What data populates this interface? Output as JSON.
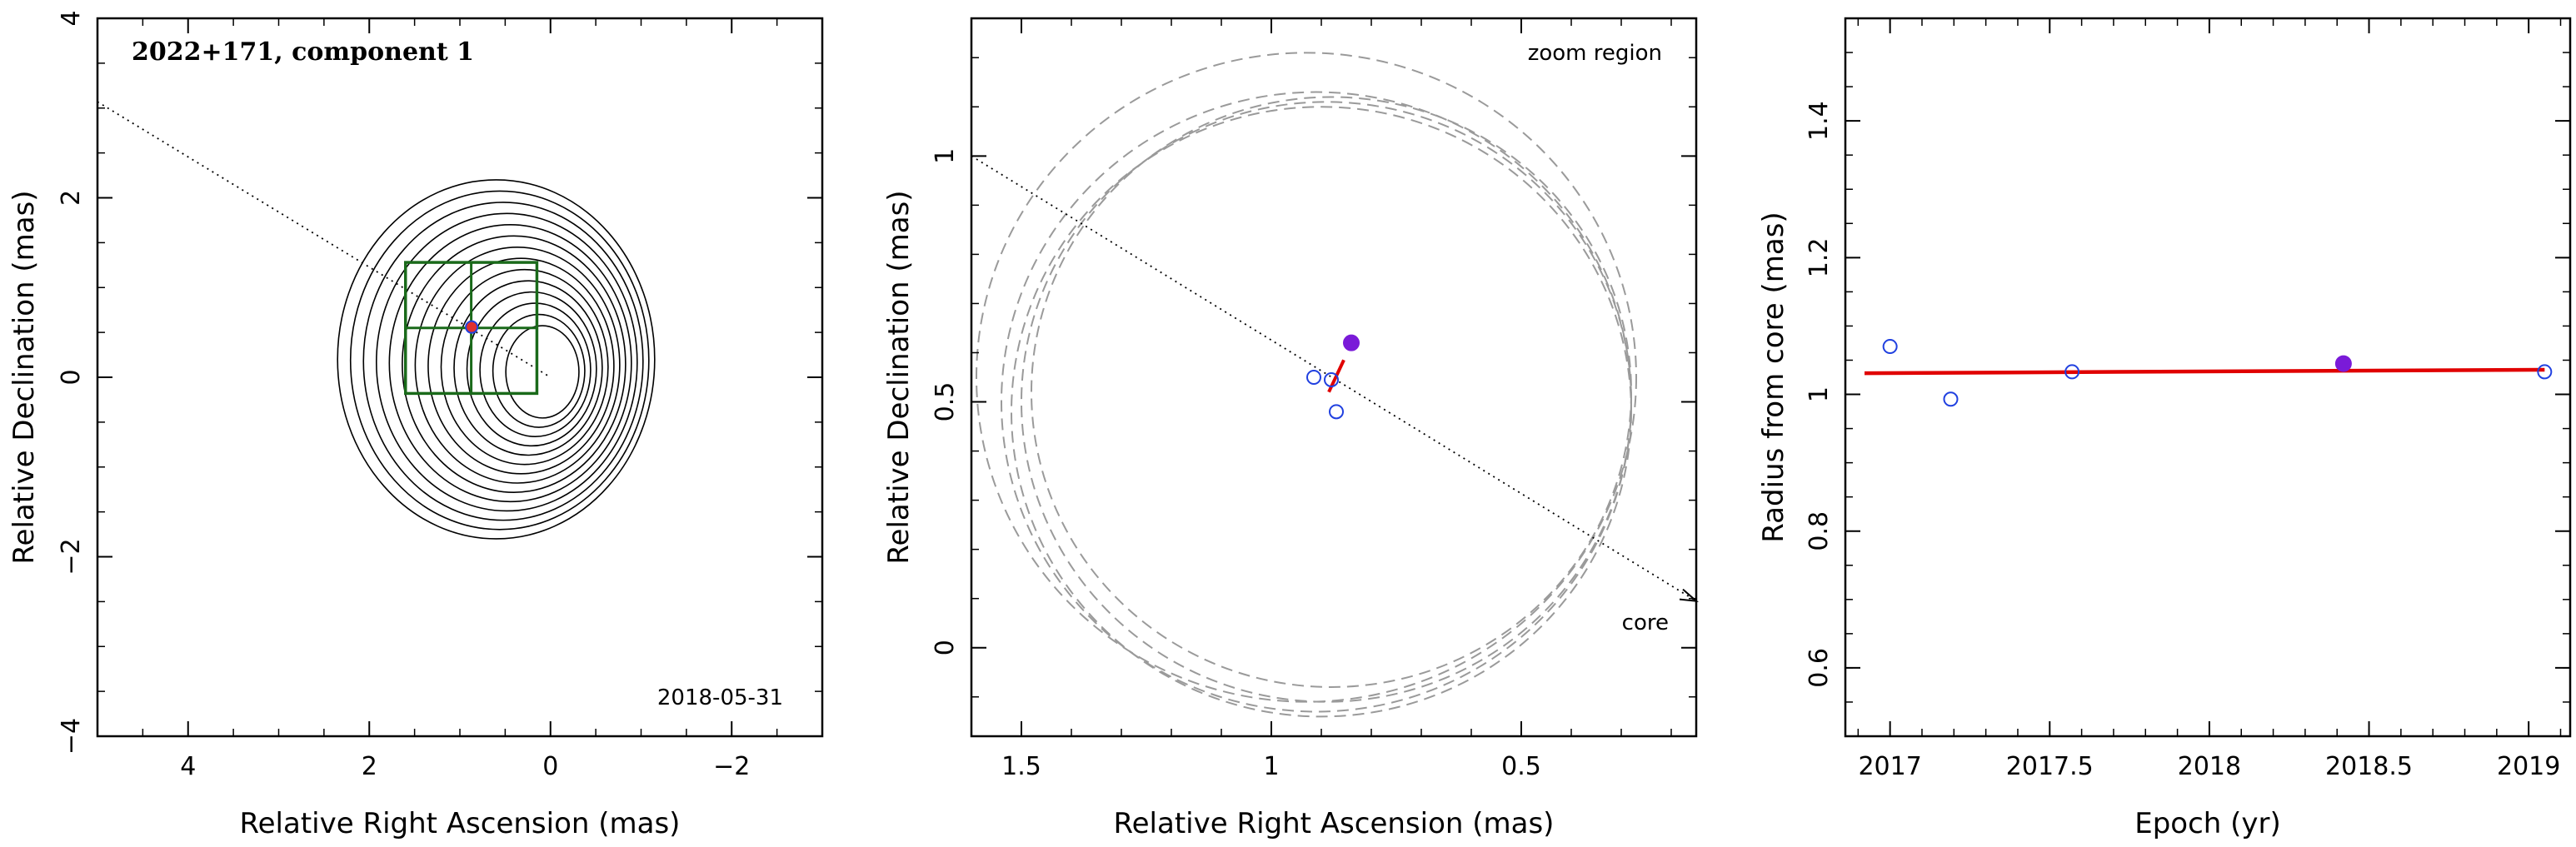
{
  "chart_data": [
    {
      "type": "contour",
      "title": "2022+171, component 1",
      "date": "2018-05-31",
      "xlabel": "Relative Right Ascension (mas)",
      "ylabel": "Relative Declination (mas)",
      "xlim": [
        5,
        -3
      ],
      "ylim": [
        -4,
        4
      ],
      "xticks": [
        4,
        2,
        0,
        -2
      ],
      "yticks": [
        -4,
        -2,
        0,
        2,
        4
      ],
      "xtick_labels": [
        "4",
        "2",
        "0",
        "−2"
      ],
      "ytick_labels": [
        "−4",
        "−2",
        "0",
        "2",
        "4"
      ],
      "component": {
        "x": 0.87,
        "y": 0.56
      },
      "zoom_box": {
        "x0": 1.6,
        "x1": 0.15,
        "y0": -0.18,
        "y1": 1.28
      },
      "line_from": [
        5.0,
        3.07
      ],
      "line_to": [
        0.0,
        0.0
      ]
    },
    {
      "type": "scatter",
      "xlabel": "Relative Right Ascension (mas)",
      "ylabel": "Relative Declination (mas)",
      "xlim": [
        1.6,
        0.15
      ],
      "ylim": [
        -0.18,
        1.28
      ],
      "xticks": [
        1.5,
        1,
        0.5
      ],
      "yticks": [
        0,
        0.5,
        1
      ],
      "xtick_labels": [
        "1.5",
        "1",
        "0.5"
      ],
      "ytick_labels": [
        "0",
        "0.5",
        "1"
      ],
      "annotations": {
        "zoom": "zoom region",
        "core": "core"
      },
      "series": [
        {
          "marker": "open-circle",
          "color": "#2040e0",
          "x": [
            0.915,
            0.88,
            0.87
          ],
          "y": [
            0.55,
            0.545,
            0.48
          ]
        },
        {
          "marker": "filled-circle",
          "color": "#7a1ad8",
          "x": [
            0.84
          ],
          "y": [
            0.62
          ]
        }
      ],
      "circles": [
        {
          "cx": 0.93,
          "cy": 0.55,
          "r": 0.66
        },
        {
          "cx": 0.91,
          "cy": 0.5,
          "r": 0.63
        },
        {
          "cx": 0.9,
          "cy": 0.48,
          "r": 0.62
        },
        {
          "cx": 0.89,
          "cy": 0.5,
          "r": 0.61
        },
        {
          "cx": 0.88,
          "cy": 0.52,
          "r": 0.6
        }
      ]
    },
    {
      "type": "scatter",
      "xlabel": "Epoch (yr)",
      "ylabel": "Radius from core (mas)",
      "xlim": [
        2016.86,
        2019.13
      ],
      "ylim": [
        0.5,
        1.55
      ],
      "xticks": [
        2017,
        2017.5,
        2018,
        2018.5,
        2019
      ],
      "yticks": [
        0.6,
        0.8,
        1,
        1.2,
        1.4
      ],
      "xtick_labels": [
        "2017",
        "2017.5",
        "2018",
        "2018.5",
        "2019"
      ],
      "ytick_labels": [
        "0.6",
        "0.8",
        "1",
        "1.2",
        "1.4"
      ],
      "series": [
        {
          "marker": "open-circle",
          "color": "#2040e0",
          "x": [
            2017.0,
            2017.19,
            2017.57,
            2019.05
          ],
          "y": [
            1.07,
            0.993,
            1.033,
            1.033
          ]
        },
        {
          "marker": "filled-circle",
          "color": "#7a1ad8",
          "x": [
            2018.42
          ],
          "y": [
            1.045
          ]
        }
      ],
      "fit": {
        "color": "#e00000",
        "x": [
          2016.92,
          2019.05
        ],
        "y": [
          1.031,
          1.036
        ]
      }
    }
  ]
}
